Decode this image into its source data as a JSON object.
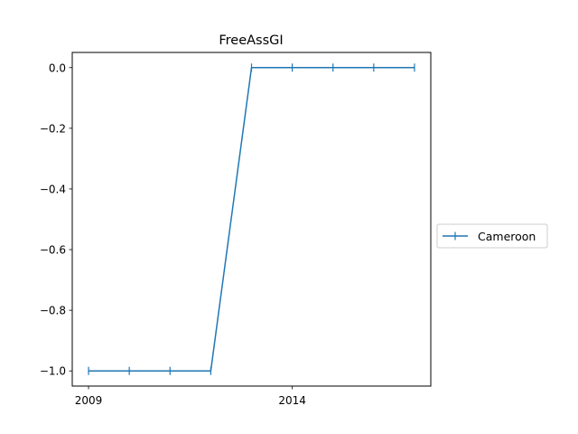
{
  "chart_data": {
    "type": "line",
    "title": "FreeAssGI",
    "xlabel": "",
    "ylabel": "",
    "x": [
      2009,
      2010,
      2011,
      2012,
      2013,
      2014,
      2015,
      2016,
      2017
    ],
    "series": [
      {
        "name": "Cameroon",
        "values": [
          -1.0,
          -1.0,
          -1.0,
          -1.0,
          0.0,
          0.0,
          0.0,
          0.0,
          0.0
        ],
        "color": "#1f77b4",
        "marker": "vertical-tick"
      }
    ],
    "xlim": [
      2008.6,
      2017.4
    ],
    "ylim": [
      -1.05,
      0.05
    ],
    "xticks": [
      2009,
      2014
    ],
    "xtick_labels": [
      "2009",
      "2014"
    ],
    "yticks": [
      0.0,
      -0.2,
      -0.4,
      -0.6,
      -0.8,
      -1.0
    ],
    "ytick_labels": [
      "0.0",
      "−0.2",
      "−0.4",
      "−0.6",
      "−0.8",
      "−1.0"
    ],
    "grid": false,
    "legend_position": "right, outside plot area"
  }
}
